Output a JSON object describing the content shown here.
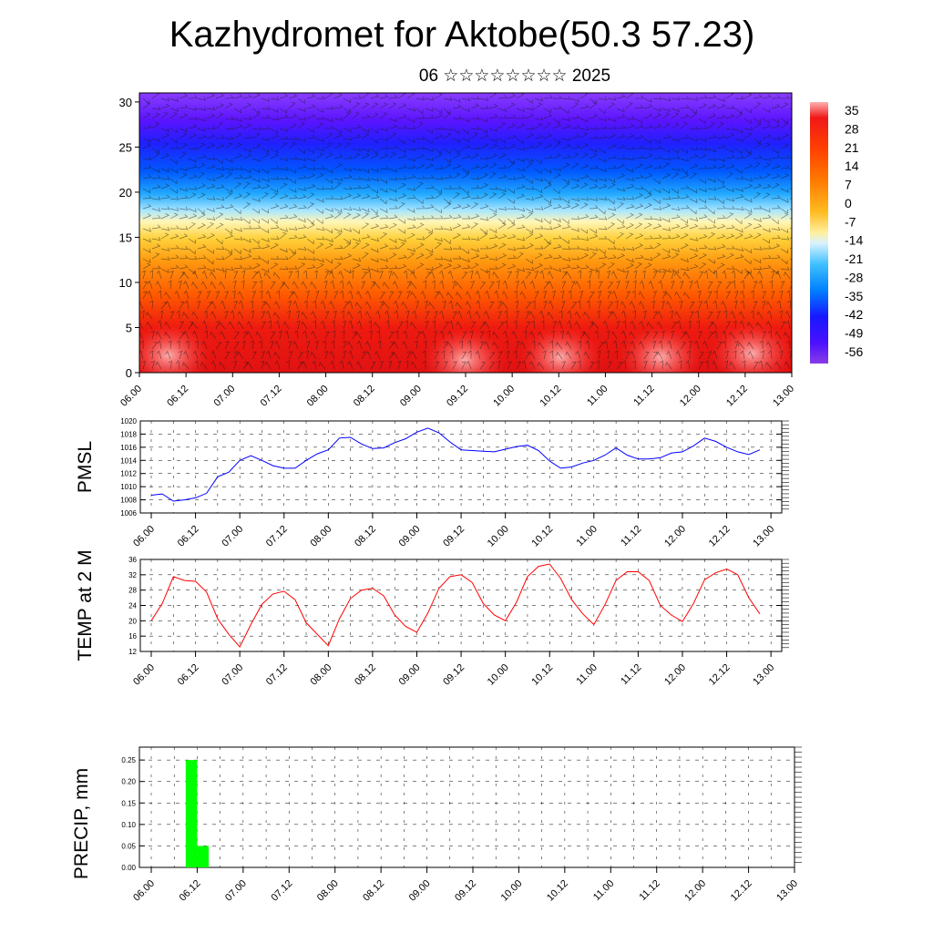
{
  "header": {
    "title": "Kazhydromet for Aktobe(50.3 57.23)",
    "subtitle": "06 ☆☆☆☆☆☆☆☆ 2025"
  },
  "chart_data": [
    {
      "type": "heatmap",
      "title": "",
      "x_ticks": [
        "06.00",
        "06.12",
        "07.00",
        "07.12",
        "08.00",
        "08.12",
        "09.00",
        "09.12",
        "10.00",
        "10.12",
        "11.00",
        "11.12",
        "12.00",
        "12.12",
        "13.00"
      ],
      "y_ticks": [
        "0",
        "5",
        "10",
        "15",
        "20",
        "25",
        "30"
      ],
      "ylim": [
        0,
        31
      ],
      "colorbar_labels": [
        "35",
        "28",
        "21",
        "14",
        "7",
        "0",
        "-7",
        "-14",
        "-21",
        "-28",
        "-35",
        "-42",
        "-49",
        "-56"
      ],
      "colorbar_colors": [
        "#ff9a9a",
        "#f01010",
        "#ff5a00",
        "#ff9a00",
        "#ffd84a",
        "#fff8c0",
        "#a0e0ff",
        "#30b0ff",
        "#0060ff",
        "#3030ff",
        "#6010ff",
        "#8040e0"
      ],
      "overlay": "wind barbs"
    },
    {
      "type": "line",
      "ylabel": "PMSL",
      "color": "#0000ff",
      "ylim": [
        1006,
        1020
      ],
      "y_ticks": [
        "1006",
        "1008",
        "1010",
        "1012",
        "1014",
        "1016",
        "1018",
        "1020"
      ],
      "x_ticks": [
        "06.00",
        "06.12",
        "07.00",
        "07.12",
        "08.00",
        "08.12",
        "09.00",
        "09.12",
        "10.00",
        "10.12",
        "11.00",
        "11.12",
        "12.00",
        "12.12",
        "13.00"
      ],
      "x": [
        0,
        3,
        6,
        9,
        12,
        15,
        18,
        21,
        24,
        27,
        30,
        33,
        36,
        39,
        42,
        45,
        48,
        51,
        54,
        57,
        60,
        63,
        66,
        69,
        72,
        75,
        78,
        81,
        84,
        87,
        90,
        93,
        96,
        99,
        102,
        105,
        108,
        111,
        114,
        117,
        120,
        123,
        126,
        129,
        132,
        135,
        138,
        141,
        144,
        147,
        150,
        153,
        156,
        159,
        162,
        165
      ],
      "values": [
        1008.7,
        1008.9,
        1007.8,
        1008.0,
        1008.3,
        1009.0,
        1011.5,
        1012.2,
        1014.0,
        1014.7,
        1014.0,
        1013.2,
        1012.8,
        1012.8,
        1014.0,
        1015.0,
        1015.6,
        1017.4,
        1017.5,
        1016.5,
        1015.8,
        1015.9,
        1016.7,
        1017.3,
        1018.3,
        1018.9,
        1018.2,
        1016.8,
        1015.6,
        1015.5,
        1015.4,
        1015.3,
        1015.7,
        1016.1,
        1016.3,
        1015.5,
        1013.9,
        1012.8,
        1013.0,
        1013.6,
        1014.0,
        1014.8,
        1015.9,
        1014.8,
        1014.2,
        1014.2,
        1014.4,
        1015.1,
        1015.3,
        1016.2,
        1017.4,
        1016.9,
        1016.0,
        1015.3,
        1014.9,
        1015.6
      ]
    },
    {
      "type": "line",
      "ylabel": "TEMP at 2 M",
      "color": "#ff0000",
      "ylim": [
        12,
        36
      ],
      "y_ticks": [
        "12",
        "16",
        "20",
        "24",
        "28",
        "32",
        "36"
      ],
      "x_ticks": [
        "06.00",
        "06.12",
        "07.00",
        "07.12",
        "08.00",
        "08.12",
        "09.00",
        "09.12",
        "10.00",
        "10.12",
        "11.00",
        "11.12",
        "12.00",
        "12.12",
        "13.00"
      ],
      "x": [
        0,
        3,
        6,
        9,
        12,
        15,
        18,
        21,
        24,
        27,
        30,
        33,
        36,
        39,
        42,
        45,
        48,
        51,
        54,
        57,
        60,
        63,
        66,
        69,
        72,
        75,
        78,
        81,
        84,
        87,
        90,
        93,
        96,
        99,
        102,
        105,
        108,
        111,
        114,
        117,
        120,
        123,
        126,
        129,
        132,
        135,
        138,
        141,
        144,
        147,
        150,
        153,
        156,
        159,
        162,
        165
      ],
      "values": [
        20.0,
        24.5,
        31.5,
        30.5,
        30.3,
        27.5,
        20.5,
        16.5,
        13.2,
        19.0,
        24.3,
        27.0,
        27.7,
        25.5,
        19.5,
        16.5,
        13.5,
        20.5,
        25.8,
        28.0,
        28.5,
        26.5,
        21.5,
        18.5,
        17.0,
        22.0,
        28.5,
        31.5,
        32.0,
        30.0,
        24.5,
        21.5,
        20.0,
        24.8,
        31.5,
        34.2,
        34.8,
        31.0,
        25.5,
        21.8,
        19.0,
        24.2,
        30.5,
        32.8,
        32.8,
        30.5,
        24.0,
        21.5,
        19.8,
        24.5,
        30.7,
        32.5,
        33.5,
        32.0,
        26.0,
        21.8
      ]
    },
    {
      "type": "bar",
      "ylabel": "PRECIP, mm",
      "color": "#00ff00",
      "ylim": [
        0,
        0.28
      ],
      "y_ticks": [
        "0.00",
        "0.05",
        "0.10",
        "0.15",
        "0.20",
        "0.25"
      ],
      "x_ticks": [
        "06.00",
        "06.12",
        "07.00",
        "07.12",
        "08.00",
        "08.12",
        "09.00",
        "09.12",
        "10.00",
        "10.12",
        "11.00",
        "11.12",
        "12.00",
        "12.12",
        "13.00"
      ],
      "bars": [
        {
          "x_start": 9,
          "x_end": 12,
          "value": 0.25
        },
        {
          "x_start": 12,
          "x_end": 15,
          "value": 0.05
        }
      ]
    }
  ]
}
